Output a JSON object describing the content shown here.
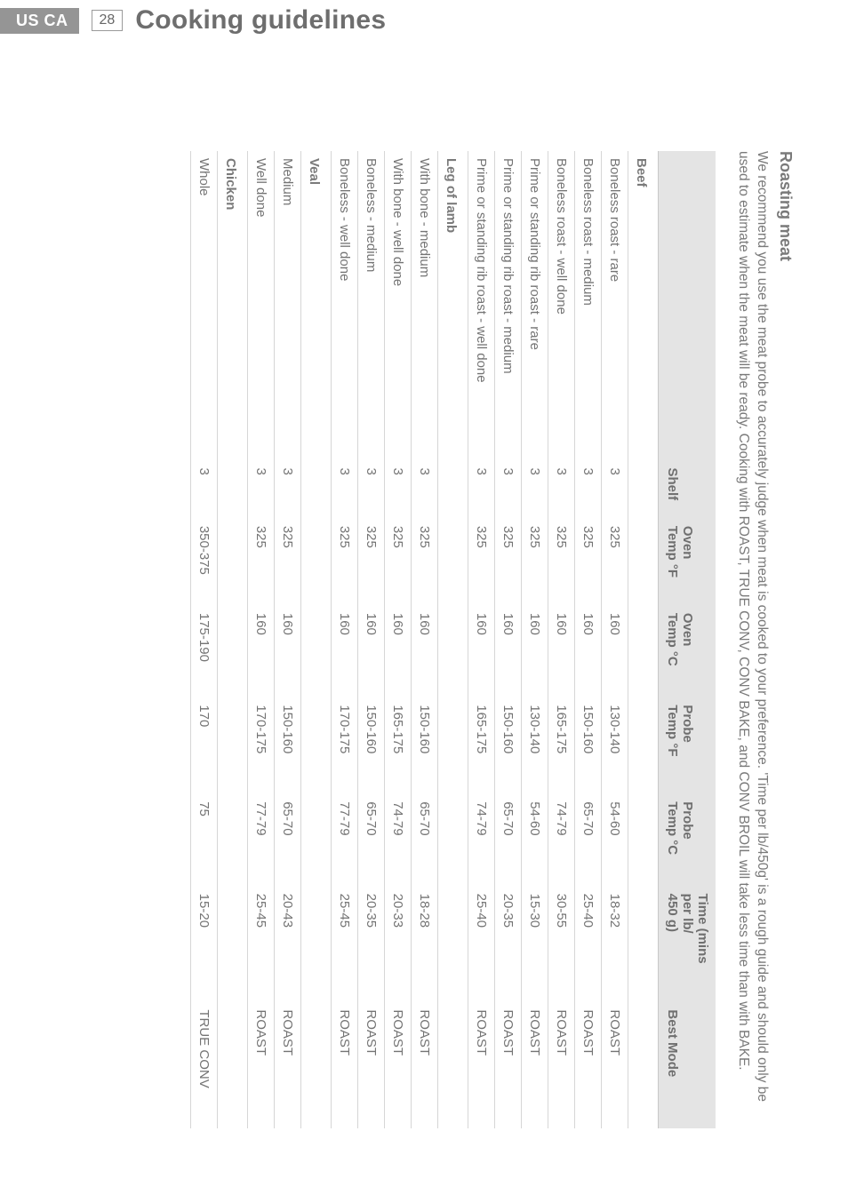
{
  "header": {
    "badge": "US CA",
    "page": "28",
    "title": "Cooking guidelines"
  },
  "sheet": {
    "h2": "Roasting meat",
    "intro": "We recommend you use the meat probe to accurately judge when meat is cooked to your preference. 'Time per lb/450g' is a rough guide and should only be used to estimate when the meat will be ready. Cooking with ROAST, TRUE CONV, CONV BAKE, and CONV BROIL will take less time than with BAKE."
  },
  "table": {
    "columns": [
      "",
      "Shelf",
      "Oven\nTemp °F",
      "Oven\nTemp °C",
      "Probe\nTemp °F",
      "Probe\nTemp °C",
      "Time (mins\nper lb/\n450 g)",
      "Best Mode"
    ],
    "col_widths": [
      "320px",
      "60px",
      "90px",
      "95px",
      "100px",
      "95px",
      "120px",
      "130px"
    ],
    "sections": [
      {
        "title": "Beef",
        "rows": [
          [
            "Boneless roast - rare",
            "3",
            "325",
            "160",
            "130-140",
            "54-60",
            "18-32",
            "ROAST"
          ],
          [
            "Boneless roast - medium",
            "3",
            "325",
            "160",
            "150-160",
            "65-70",
            "25-40",
            "ROAST"
          ],
          [
            "Boneless roast - well done",
            "3",
            "325",
            "160",
            "165-175",
            "74-79",
            "30-55",
            "ROAST"
          ],
          [
            "Prime or standing rib roast - rare",
            "3",
            "325",
            "160",
            "130-140",
            "54-60",
            "15-30",
            "ROAST"
          ],
          [
            "Prime or standing rib roast - medium",
            "3",
            "325",
            "160",
            "150-160",
            "65-70",
            "20-35",
            "ROAST"
          ],
          [
            "Prime or standing rib roast - well done",
            "3",
            "325",
            "160",
            "165-175",
            "74-79",
            "25-40",
            "ROAST"
          ]
        ]
      },
      {
        "title": "Leg of lamb",
        "rows": [
          [
            "With bone - medium",
            "3",
            "325",
            "160",
            "150-160",
            "65-70",
            "18-28",
            "ROAST"
          ],
          [
            "With bone - well done",
            "3",
            "325",
            "160",
            "165-175",
            "74-79",
            "20-33",
            "ROAST"
          ],
          [
            "Boneless - medium",
            "3",
            "325",
            "160",
            "150-160",
            "65-70",
            "20-35",
            "ROAST"
          ],
          [
            "Boneless - well done",
            "3",
            "325",
            "160",
            "170-175",
            "77-79",
            "25-45",
            "ROAST"
          ]
        ]
      },
      {
        "title": "Veal",
        "rows": [
          [
            "Medium",
            "3",
            "325",
            "160",
            "150-160",
            "65-70",
            "20-43",
            "ROAST"
          ],
          [
            "Well done",
            "3",
            "325",
            "160",
            "170-175",
            "77-79",
            "25-45",
            "ROAST"
          ]
        ]
      },
      {
        "title": "Chicken",
        "rows": [
          [
            "Whole",
            "3",
            "350-375",
            "175-190",
            "170",
            "75",
            "15-20",
            "TRUE CONV"
          ]
        ]
      }
    ]
  },
  "colors": {
    "header_bg": "#959595",
    "header_fg": "#ffffff",
    "text": "#6f6f6f",
    "thead_bg": "#e4e4e4",
    "row_border": "#d6d6d6"
  }
}
